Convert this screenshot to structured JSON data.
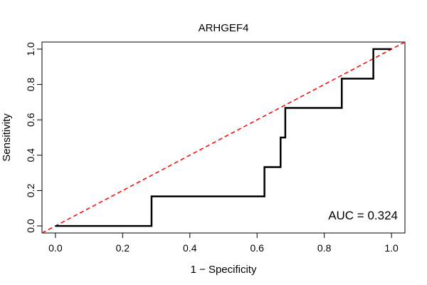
{
  "chart_data": {
    "type": "line",
    "title": "ARHGEF4",
    "xlabel": "1 − Specificity",
    "ylabel": "Sensitivity",
    "xlim": [
      -0.04,
      1.04
    ],
    "ylim": [
      -0.04,
      1.04
    ],
    "xticks": [
      0.0,
      0.2,
      0.4,
      0.6,
      0.8,
      1.0
    ],
    "xtick_labels": [
      "0.0",
      "0.2",
      "0.4",
      "0.6",
      "0.8",
      "1.0"
    ],
    "yticks": [
      0.0,
      0.2,
      0.4,
      0.6,
      0.8,
      1.0
    ],
    "ytick_labels": [
      "0.0",
      "0.2",
      "0.4",
      "0.6",
      "0.8",
      "1.0"
    ],
    "annotation": "AUC = 0.324",
    "series": [
      {
        "name": "ROC",
        "color": "#000000",
        "x": [
          0.0,
          0.286,
          0.286,
          0.622,
          0.622,
          0.67,
          0.67,
          0.684,
          0.684,
          0.852,
          0.852,
          0.946,
          0.946,
          1.0
        ],
        "y": [
          0.0,
          0.0,
          0.167,
          0.167,
          0.333,
          0.333,
          0.5,
          0.5,
          0.667,
          0.667,
          0.833,
          0.833,
          1.0,
          1.0
        ]
      },
      {
        "name": "Reference",
        "color": "#ff0000",
        "style": "dashed",
        "x": [
          -0.04,
          1.04
        ],
        "y": [
          -0.04,
          1.04
        ]
      }
    ]
  }
}
